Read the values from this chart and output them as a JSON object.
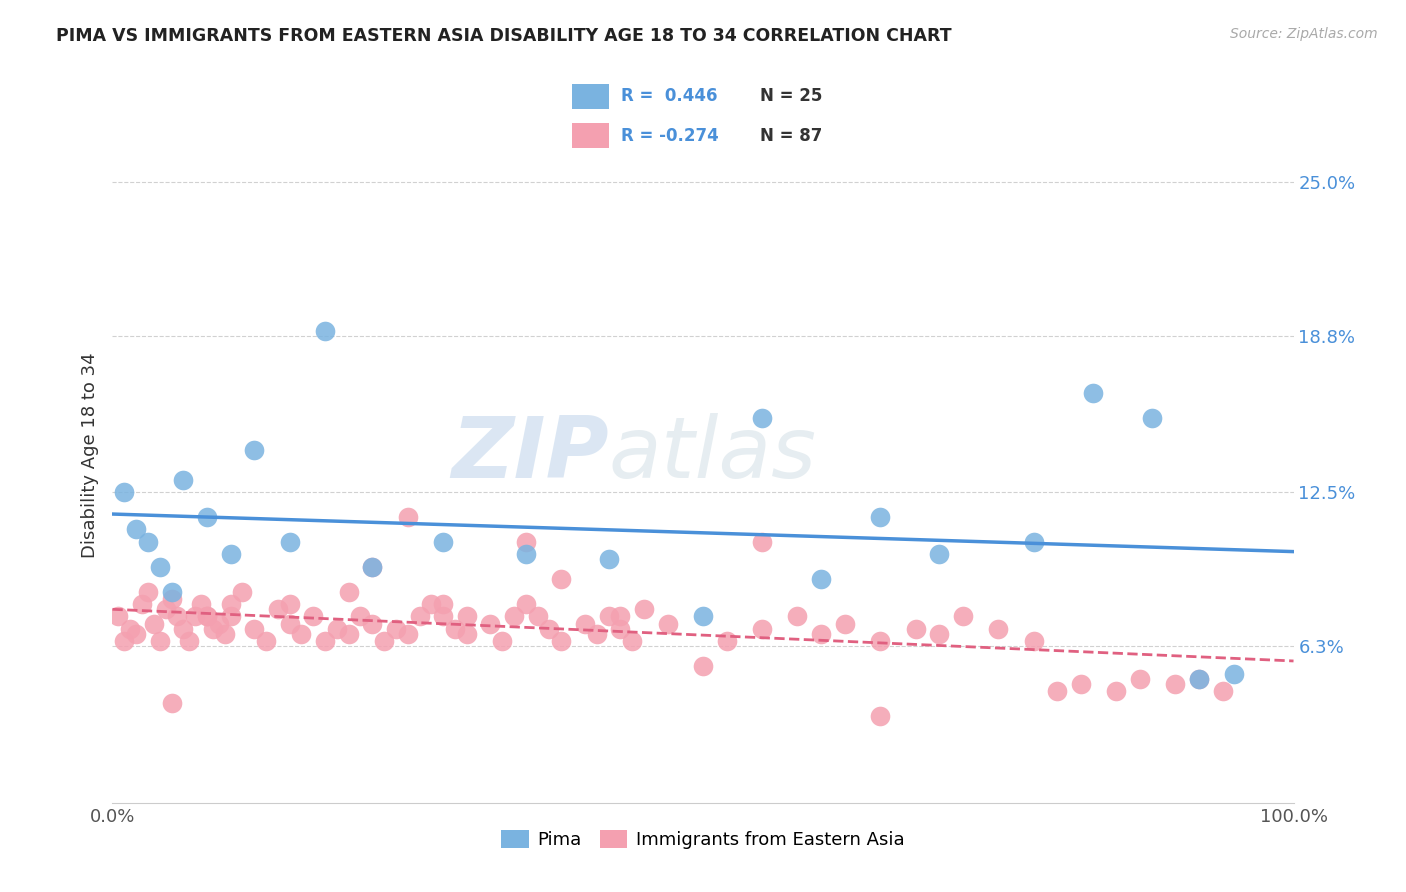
{
  "title": "PIMA VS IMMIGRANTS FROM EASTERN ASIA DISABILITY AGE 18 TO 34 CORRELATION CHART",
  "source": "Source: ZipAtlas.com",
  "ylabel": "Disability Age 18 to 34",
  "legend_labels": [
    "Pima",
    "Immigrants from Eastern Asia"
  ],
  "r_pima": 0.446,
  "n_pima": 25,
  "r_imm": -0.274,
  "n_imm": 87,
  "pima_color": "#7ab3e0",
  "imm_color": "#f4a0b0",
  "pima_line_color": "#4a90d9",
  "imm_line_color": "#e06080",
  "watermark_zip": "ZIP",
  "watermark_atlas": "atlas",
  "xlim": [
    0,
    100
  ],
  "ylim": [
    0,
    28
  ],
  "yticks": [
    6.3,
    12.5,
    18.8,
    25.0
  ],
  "ytick_labels": [
    "6.3%",
    "12.5%",
    "18.8%",
    "25.0%"
  ],
  "background_color": "#ffffff",
  "pima_x": [
    1,
    2,
    4,
    6,
    8,
    12,
    18,
    50,
    60,
    65,
    70,
    78,
    83,
    88,
    92,
    95,
    3,
    5,
    10,
    15,
    22,
    28,
    35,
    42,
    55
  ],
  "pima_y": [
    12.5,
    11.0,
    9.5,
    13.0,
    11.5,
    14.2,
    19.0,
    7.5,
    9.0,
    11.5,
    10.0,
    10.5,
    16.5,
    15.5,
    5.0,
    5.2,
    10.5,
    8.5,
    10.0,
    10.5,
    9.5,
    10.5,
    10.0,
    9.8,
    15.5
  ],
  "imm_x": [
    0.5,
    1.0,
    1.5,
    2.0,
    2.5,
    3.0,
    3.5,
    4.0,
    4.5,
    5.0,
    5.5,
    6.0,
    6.5,
    7.0,
    7.5,
    8.0,
    8.5,
    9.0,
    9.5,
    10.0,
    11.0,
    12.0,
    13.0,
    14.0,
    15.0,
    16.0,
    17.0,
    18.0,
    19.0,
    20.0,
    21.0,
    22.0,
    23.0,
    24.0,
    25.0,
    26.0,
    27.0,
    28.0,
    29.0,
    30.0,
    32.0,
    33.0,
    34.0,
    35.0,
    36.0,
    37.0,
    38.0,
    40.0,
    41.0,
    42.0,
    43.0,
    44.0,
    45.0,
    47.0,
    50.0,
    52.0,
    55.0,
    58.0,
    60.0,
    62.0,
    65.0,
    68.0,
    70.0,
    72.0,
    75.0,
    78.0,
    80.0,
    82.0,
    85.0,
    87.0,
    90.0,
    92.0,
    94.0,
    38.0,
    20.0,
    8.0,
    15.0,
    25.0,
    35.0,
    65.0,
    5.0,
    28.0,
    43.0,
    55.0,
    10.0,
    30.0,
    22.0
  ],
  "imm_y": [
    7.5,
    6.5,
    7.0,
    6.8,
    8.0,
    8.5,
    7.2,
    6.5,
    7.8,
    8.2,
    7.5,
    7.0,
    6.5,
    7.5,
    8.0,
    7.5,
    7.0,
    7.2,
    6.8,
    7.5,
    8.5,
    7.0,
    6.5,
    7.8,
    7.2,
    6.8,
    7.5,
    6.5,
    7.0,
    6.8,
    7.5,
    7.2,
    6.5,
    7.0,
    6.8,
    7.5,
    8.0,
    7.5,
    7.0,
    6.8,
    7.2,
    6.5,
    7.5,
    8.0,
    7.5,
    7.0,
    6.5,
    7.2,
    6.8,
    7.5,
    7.0,
    6.5,
    7.8,
    7.2,
    5.5,
    6.5,
    7.0,
    7.5,
    6.8,
    7.2,
    6.5,
    7.0,
    6.8,
    7.5,
    7.0,
    6.5,
    4.5,
    4.8,
    4.5,
    5.0,
    4.8,
    5.0,
    4.5,
    9.0,
    8.5,
    7.5,
    8.0,
    11.5,
    10.5,
    3.5,
    4.0,
    8.0,
    7.5,
    10.5,
    8.0,
    7.5,
    9.5
  ]
}
